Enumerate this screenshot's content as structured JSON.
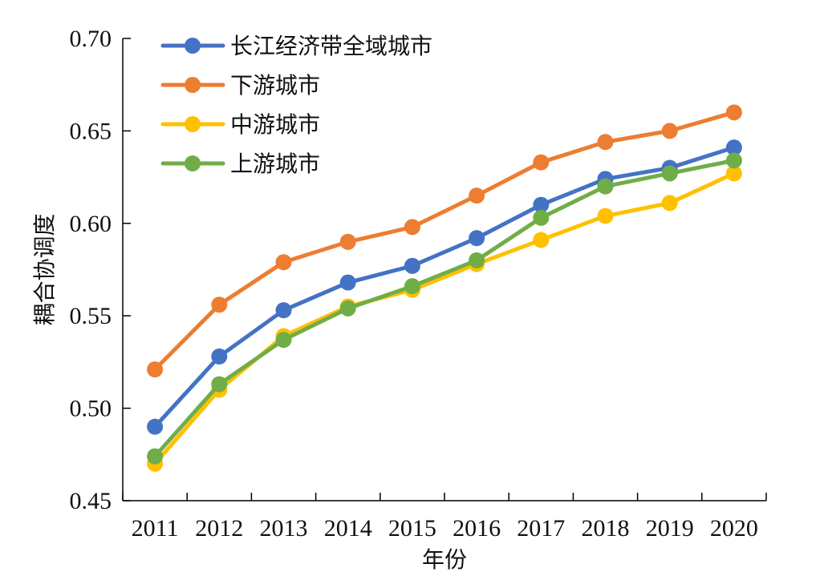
{
  "chart_data": {
    "type": "line",
    "xlabel": "年份",
    "ylabel": "耦合协调度",
    "categories": [
      "2011",
      "2012",
      "2013",
      "2014",
      "2015",
      "2016",
      "2017",
      "2018",
      "2019",
      "2020"
    ],
    "ylim": [
      0.45,
      0.7
    ],
    "yticks": [
      "0.45",
      "0.50",
      "0.55",
      "0.60",
      "0.65",
      "0.70"
    ],
    "grid": false,
    "legend_position": "top-left",
    "series": [
      {
        "name": "长江经济带全域城市",
        "color": "#4472C4",
        "values": [
          0.49,
          0.528,
          0.553,
          0.568,
          0.577,
          0.592,
          0.61,
          0.624,
          0.63,
          0.641
        ]
      },
      {
        "name": "下游城市",
        "color": "#ED7D31",
        "values": [
          0.521,
          0.556,
          0.579,
          0.59,
          0.598,
          0.615,
          0.633,
          0.644,
          0.65,
          0.66
        ]
      },
      {
        "name": "中游城市",
        "color": "#FFC000",
        "values": [
          0.47,
          0.51,
          0.539,
          0.555,
          0.564,
          0.578,
          0.591,
          0.604,
          0.611,
          0.627
        ]
      },
      {
        "name": "上游城市",
        "color": "#70AD47",
        "values": [
          0.474,
          0.513,
          0.537,
          0.554,
          0.566,
          0.58,
          0.603,
          0.62,
          0.627,
          0.634
        ]
      }
    ]
  }
}
